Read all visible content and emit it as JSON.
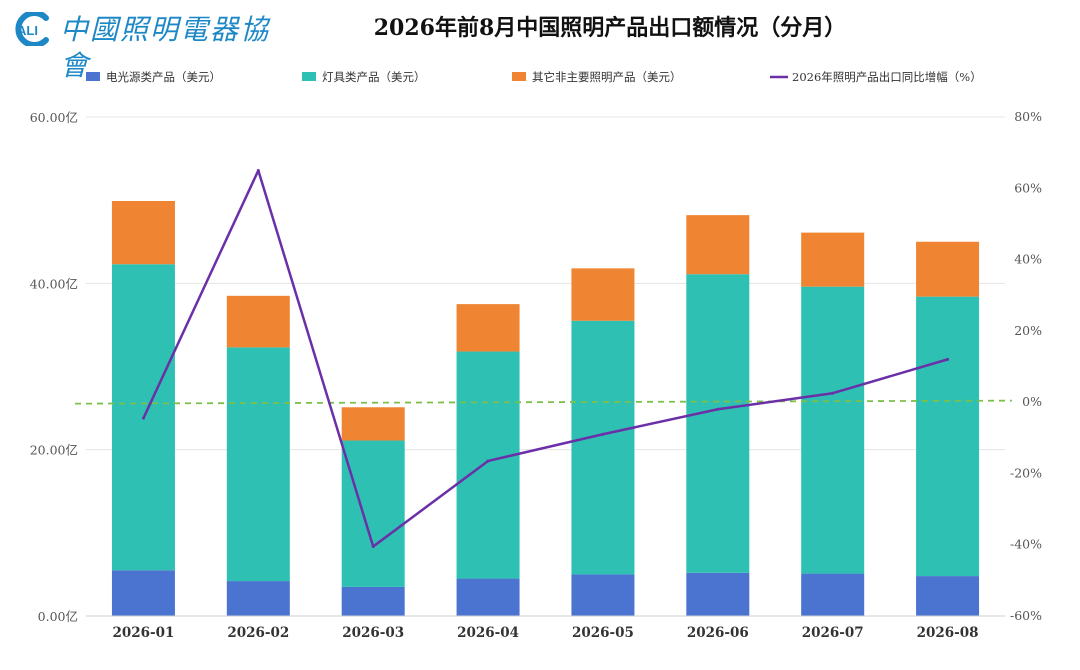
{
  "header": {
    "logo_text": "中國照明電器協會",
    "logo_badge": "ALI",
    "title": "2026年前8月中国照明产品出口额情况（分月）"
  },
  "colors": {
    "electric_light_source": "#4a74d0",
    "lamps": "#2ec0b3",
    "other_lighting": "#ef8532",
    "yoy_line": "#6b2fa8",
    "zero_line": "#7cc04a",
    "logo": "#1e88c7"
  },
  "chart_data": {
    "type": "bar",
    "stacked": true,
    "title": "2026年前8月中国照明产品出口额情况（分月）",
    "categories": [
      "2026-01",
      "2026-02",
      "2026-03",
      "2026-04",
      "2026-05",
      "2026-06",
      "2026-07",
      "2026-08"
    ],
    "series": [
      {
        "name": "电光源类产品（美元）",
        "type": "bar",
        "axis": "left",
        "values": [
          5.5,
          4.2,
          3.5,
          4.5,
          5.0,
          5.2,
          5.1,
          4.8
        ]
      },
      {
        "name": "灯具类产品（美元）",
        "type": "bar",
        "axis": "left",
        "values": [
          36.8,
          28.1,
          17.6,
          27.3,
          30.5,
          35.9,
          34.5,
          33.6
        ]
      },
      {
        "name": "其它非主要照明产品（美元）",
        "type": "bar",
        "axis": "left",
        "values": [
          7.6,
          6.2,
          4.0,
          5.7,
          6.3,
          7.1,
          6.5,
          6.6
        ]
      },
      {
        "name": "2026年照明产品出口同比增幅（%）",
        "type": "line",
        "axis": "right",
        "values": [
          -4.5,
          65.0,
          -40.5,
          -16.5,
          -9.0,
          -2.0,
          2.5,
          12.0
        ]
      }
    ],
    "left_axis": {
      "ylim": [
        0,
        60
      ],
      "ticks": [
        "0.00亿",
        "20.00亿",
        "40.00亿",
        "60.00亿"
      ]
    },
    "right_axis": {
      "ylim": [
        -60,
        80
      ],
      "ticks": [
        "-60%",
        "-40%",
        "-20%",
        "0%",
        "20%",
        "40%",
        "60%",
        "80%"
      ]
    },
    "reference_line": {
      "axis": "right",
      "value": 0,
      "style": "dashed"
    },
    "grid": true,
    "legend_position": "top"
  }
}
